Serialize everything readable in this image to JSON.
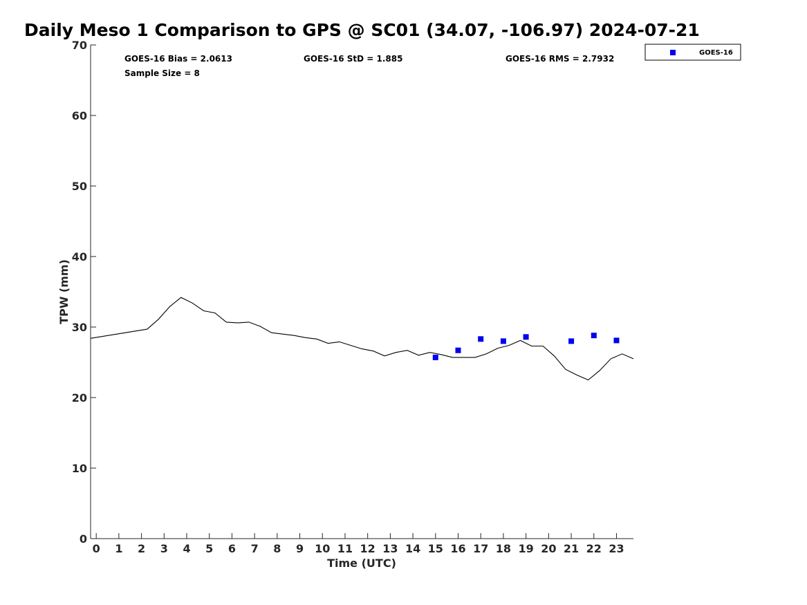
{
  "chart_data": {
    "type": "scatter",
    "title": "Daily Meso 1 Comparison to GPS @ SC01 (34.07, -106.97) 2024-07-21",
    "xlabel": "Time (UTC)",
    "ylabel": "TPW (mm)",
    "xlim": [
      -0.25,
      23.75
    ],
    "ylim": [
      0,
      70
    ],
    "x_ticks": [
      "0",
      "1",
      "2",
      "3",
      "4",
      "5",
      "6",
      "7",
      "8",
      "9",
      "10",
      "11",
      "12",
      "13",
      "14",
      "15",
      "16",
      "17",
      "18",
      "19",
      "20",
      "21",
      "22",
      "23"
    ],
    "y_ticks": [
      "0",
      "10",
      "20",
      "30",
      "40",
      "50",
      "60",
      "70"
    ],
    "grid": false,
    "legend_position": "top-right",
    "stats": {
      "bias": "GOES-16 Bias = 2.0613",
      "std": "GOES-16 StD = 1.885",
      "rms": "GOES-16 RMS = 2.7932",
      "sample": "Sample Size = 8"
    },
    "series": [
      {
        "type": "line",
        "color": "#000000",
        "x": [
          -0.25,
          2.25,
          2.75,
          3.25,
          3.75,
          4.25,
          4.75,
          5.25,
          5.75,
          6.25,
          6.75,
          7.25,
          7.75,
          8.25,
          8.75,
          9.25,
          9.75,
          10.25,
          10.75,
          11.25,
          11.75,
          12.25,
          12.75,
          13.25,
          13.75,
          14.25,
          14.75,
          15.25,
          15.75,
          16.25,
          16.75,
          17.25,
          17.75,
          18.25,
          18.75,
          19.25,
          19.75,
          20.25,
          20.75,
          21.25,
          21.75,
          22.25,
          22.75,
          23.25,
          23.75
        ],
        "y": [
          28.4,
          29.7,
          31.1,
          32.9,
          34.2,
          33.4,
          32.3,
          32.0,
          30.7,
          30.6,
          30.7,
          30.1,
          29.2,
          29.0,
          28.8,
          28.5,
          28.3,
          27.7,
          27.9,
          27.4,
          26.9,
          26.6,
          25.9,
          26.4,
          26.7,
          26.0,
          26.4,
          26.1,
          25.7,
          25.7,
          25.7,
          26.2,
          27.0,
          27.4,
          28.1,
          27.3,
          27.3,
          25.9,
          24.0,
          23.2,
          22.5,
          23.8,
          25.5,
          26.2,
          25.5
        ]
      },
      {
        "name": "GOES-16",
        "type": "scatter",
        "color": "#0000ee",
        "marker": "square",
        "x": [
          15,
          16,
          17,
          18,
          19,
          21,
          22,
          23
        ],
        "y": [
          25.7,
          26.7,
          28.3,
          28.0,
          28.6,
          28.0,
          28.8,
          28.1
        ]
      }
    ]
  }
}
